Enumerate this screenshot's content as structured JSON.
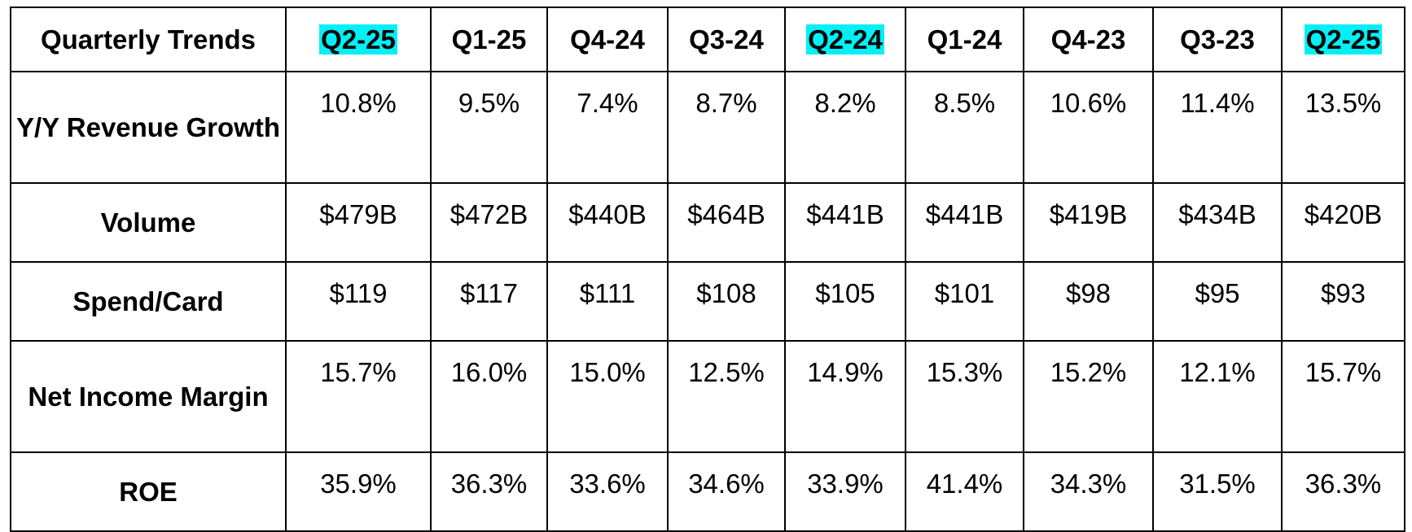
{
  "table": {
    "corner_label": "Quarterly Trends",
    "columns": [
      {
        "label": "Q2-25",
        "highlighted": true
      },
      {
        "label": "Q1-25",
        "highlighted": false
      },
      {
        "label": "Q4-24",
        "highlighted": false
      },
      {
        "label": "Q3-24",
        "highlighted": false
      },
      {
        "label": "Q2-24",
        "highlighted": true
      },
      {
        "label": "Q1-24",
        "highlighted": false
      },
      {
        "label": "Q4-23",
        "highlighted": false
      },
      {
        "label": "Q3-23",
        "highlighted": false
      },
      {
        "label": "Q2-25",
        "highlighted": true
      }
    ],
    "highlight_color": "#00f0f5",
    "rows": [
      {
        "label": "Y/Y Revenue Growth",
        "values": [
          "10.8%",
          "9.5%",
          "7.4%",
          "8.7%",
          "8.2%",
          "8.5%",
          "10.6%",
          "11.4%",
          "13.5%"
        ]
      },
      {
        "label": "Volume",
        "values": [
          "$479B",
          "$472B",
          "$440B",
          "$464B",
          "$441B",
          "$441B",
          "$419B",
          "$434B",
          "$420B"
        ]
      },
      {
        "label": "Spend/Card",
        "values": [
          "$119",
          "$117",
          "$111",
          "$108",
          "$105",
          "$101",
          "$98",
          "$95",
          "$93"
        ]
      },
      {
        "label": "Net Income Margin",
        "values": [
          "15.7%",
          "16.0%",
          "15.0%",
          "12.5%",
          "14.9%",
          "15.3%",
          "15.2%",
          "12.1%",
          "15.7%"
        ]
      },
      {
        "label": "ROE",
        "values": [
          "35.9%",
          "36.3%",
          "33.6%",
          "34.6%",
          "33.9%",
          "41.4%",
          "34.3%",
          "31.5%",
          "36.3%"
        ]
      }
    ]
  }
}
